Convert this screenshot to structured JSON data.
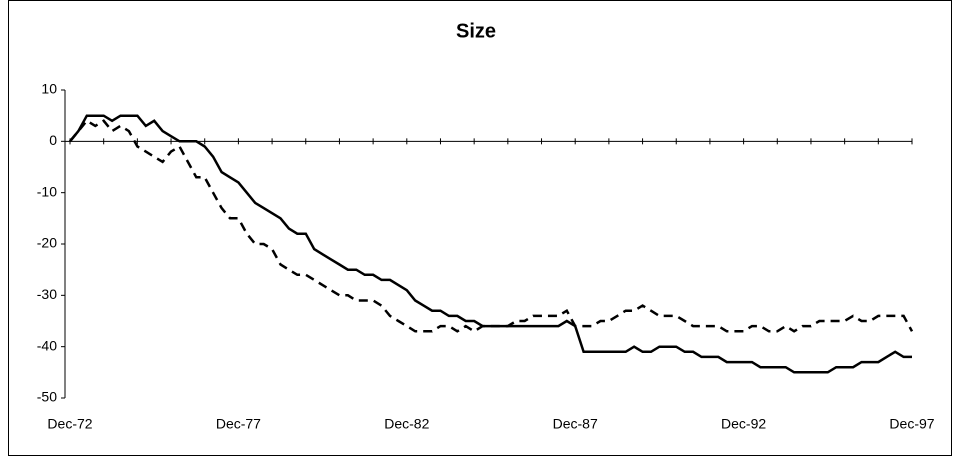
{
  "chart_data": {
    "type": "line",
    "title": "Size",
    "categories": [
      "Dec-72",
      null,
      null,
      null,
      null,
      null,
      null,
      null,
      null,
      null,
      null,
      null,
      null,
      null,
      null,
      null,
      null,
      null,
      null,
      null,
      "Dec-77",
      null,
      null,
      null,
      null,
      null,
      null,
      null,
      null,
      null,
      null,
      null,
      null,
      null,
      null,
      null,
      null,
      null,
      null,
      null,
      "Dec-82",
      null,
      null,
      null,
      null,
      null,
      null,
      null,
      null,
      null,
      null,
      null,
      null,
      null,
      null,
      null,
      null,
      null,
      null,
      null,
      "Dec-87",
      null,
      null,
      null,
      null,
      null,
      null,
      null,
      null,
      null,
      null,
      null,
      null,
      null,
      null,
      null,
      null,
      null,
      null,
      null,
      "Dec-92",
      null,
      null,
      null,
      null,
      null,
      null,
      null,
      null,
      null,
      null,
      null,
      null,
      null,
      null,
      null,
      null,
      null,
      null,
      null,
      "Dec-97"
    ],
    "series": [
      {
        "color": "#000000",
        "style": "solid",
        "values": [
          0,
          2,
          5,
          5,
          5,
          4,
          5,
          5,
          5,
          3,
          4,
          2,
          1,
          0,
          0,
          0,
          -1,
          -3,
          -6,
          -7,
          -8,
          -10,
          -12,
          -13,
          -14,
          -15,
          -17,
          -18,
          -18,
          -21,
          -22,
          -23,
          -24,
          -25,
          -25,
          -26,
          -26,
          -27,
          -27,
          -28,
          -29,
          -31,
          -32,
          -33,
          -33,
          -34,
          -34,
          -35,
          -35,
          -36,
          -36,
          -36,
          -36,
          -36,
          -36,
          -36,
          -36,
          -36,
          -36,
          -35,
          -36,
          -41,
          -41,
          -41,
          -41,
          -41,
          -41,
          -40,
          -41,
          -41,
          -40,
          -40,
          -40,
          -41,
          -41,
          -42,
          -42,
          -42,
          -43,
          -43,
          -43,
          -43,
          -44,
          -44,
          -44,
          -44,
          -45,
          -45,
          -45,
          -45,
          -45,
          -44,
          -44,
          -44,
          -43,
          -43,
          -43,
          -42,
          -41,
          -42,
          -42
        ]
      },
      {
        "color": "#000000",
        "style": "dashed",
        "values": [
          0,
          2,
          4,
          3,
          4,
          2,
          3,
          2,
          -1,
          -2,
          -3,
          -4,
          -2,
          -1,
          -4,
          -7,
          -7,
          -10,
          -13,
          -15,
          -15,
          -18,
          -20,
          -20,
          -21,
          -24,
          -25,
          -26,
          -26,
          -27,
          -28,
          -29,
          -30,
          -30,
          -31,
          -31,
          -31,
          -32,
          -34,
          -35,
          -36,
          -37,
          -37,
          -37,
          -36,
          -36,
          -37,
          -36,
          -37,
          -36,
          -36,
          -36,
          -36,
          -35,
          -35,
          -34,
          -34,
          -34,
          -34,
          -33,
          -36,
          -36,
          -36,
          -35,
          -35,
          -34,
          -33,
          -33,
          -32,
          -33,
          -34,
          -34,
          -34,
          -35,
          -36,
          -36,
          -36,
          -36,
          -37,
          -37,
          -37,
          -36,
          -36,
          -37,
          -37,
          -36,
          -37,
          -36,
          -36,
          -35,
          -35,
          -35,
          -35,
          -34,
          -35,
          -35,
          -34,
          -34,
          -34,
          -34,
          -37
        ]
      }
    ],
    "ylim": [
      -50,
      10
    ],
    "yticks": [
      -50,
      -40,
      -30,
      -20,
      -10,
      0,
      10
    ]
  }
}
